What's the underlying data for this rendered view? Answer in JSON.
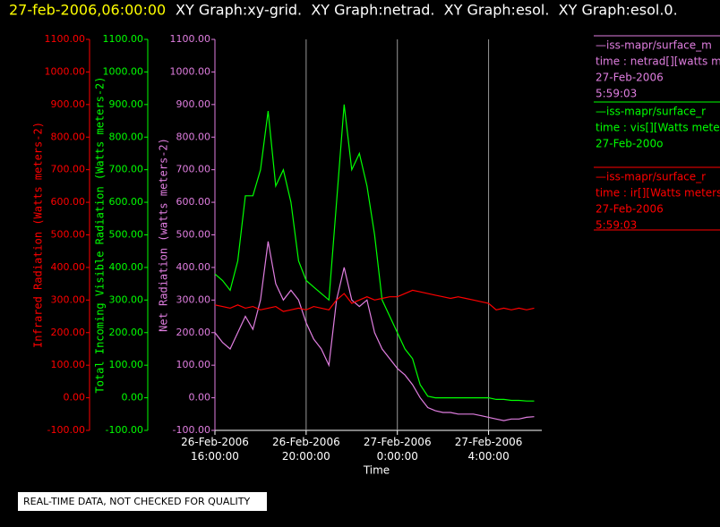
{
  "header": {
    "timestamp": "27-feb-2006,06:00:00",
    "graphs": "XY Graph:xy-grid.  XY Graph:netrad.  XY Graph:esol.  XY Graph:esol.0."
  },
  "footer": "REAL-TIME DATA, NOT CHECKED FOR QUALITY",
  "chart_data": {
    "type": "line",
    "xlabel": "Time",
    "y_axes": [
      {
        "label": "Infrared Radiation (Watts meters-2)",
        "color": "#ff0000"
      },
      {
        "label": "Total Incoming Visible Radiation (Watts meters-2)",
        "color": "#00ff00"
      },
      {
        "label": "Net Radiation (watts meters-2)",
        "color": "#e07ee0"
      }
    ],
    "ylim": [
      -100,
      1100
    ],
    "yticks": [
      {
        "value": -100,
        "label": "-100.00"
      },
      {
        "value": 0,
        "label": "0.00"
      },
      {
        "value": 100,
        "label": "100.00"
      },
      {
        "value": 200,
        "label": "200.00"
      },
      {
        "value": 300,
        "label": "300.00"
      },
      {
        "value": 400,
        "label": "400.00"
      },
      {
        "value": 500,
        "label": "500.00"
      },
      {
        "value": 600,
        "label": "600.00"
      },
      {
        "value": 700,
        "label": "700.00"
      },
      {
        "value": 800,
        "label": "800.00"
      },
      {
        "value": 900,
        "label": "900.00"
      },
      {
        "value": 1000,
        "label": "1000.00"
      },
      {
        "value": 1100,
        "label": "1100.00"
      }
    ],
    "xlim": [
      "2006-02-26T16:00",
      "2006-02-27T06:20"
    ],
    "xticks": [
      {
        "value": "2006-02-26T16:00",
        "label": "26-Feb-2006\n16:00:00"
      },
      {
        "value": "2006-02-26T20:00",
        "label": "26-Feb-2006\n20:00:00"
      },
      {
        "value": "2006-02-27T00:00",
        "label": "27-Feb-2006\n0:00:00"
      },
      {
        "value": "2006-02-27T04:00",
        "label": "27-Feb-2006\n4:00:00"
      }
    ],
    "grid": true,
    "x": [
      "2006-02-26T16:00",
      "2006-02-26T16:20",
      "2006-02-26T16:40",
      "2006-02-26T17:00",
      "2006-02-26T17:20",
      "2006-02-26T17:40",
      "2006-02-26T18:00",
      "2006-02-26T18:20",
      "2006-02-26T18:40",
      "2006-02-26T19:00",
      "2006-02-26T19:20",
      "2006-02-26T19:40",
      "2006-02-26T20:00",
      "2006-02-26T20:20",
      "2006-02-26T20:40",
      "2006-02-26T21:00",
      "2006-02-26T21:20",
      "2006-02-26T21:40",
      "2006-02-26T22:00",
      "2006-02-26T22:20",
      "2006-02-26T22:40",
      "2006-02-26T23:00",
      "2006-02-26T23:20",
      "2006-02-26T23:40",
      "2006-02-27T00:00",
      "2006-02-27T00:20",
      "2006-02-27T00:40",
      "2006-02-27T01:00",
      "2006-02-27T01:20",
      "2006-02-27T01:40",
      "2006-02-27T02:00",
      "2006-02-27T02:20",
      "2006-02-27T02:40",
      "2006-02-27T03:00",
      "2006-02-27T03:20",
      "2006-02-27T03:40",
      "2006-02-27T04:00",
      "2006-02-27T04:20",
      "2006-02-27T04:40",
      "2006-02-27T05:00",
      "2006-02-27T05:20",
      "2006-02-27T05:40",
      "2006-02-27T06:00"
    ],
    "series": [
      {
        "name": "—iss-mapr/surface_m",
        "details": [
          "time : netrad[][watts m",
          "27-Feb-2006",
          "5:59:03"
        ],
        "color": "#e07ee0",
        "values": [
          200,
          170,
          150,
          200,
          250,
          210,
          300,
          480,
          350,
          300,
          330,
          300,
          230,
          180,
          150,
          100,
          300,
          400,
          300,
          280,
          300,
          200,
          150,
          120,
          90,
          70,
          40,
          0,
          -30,
          -40,
          -45,
          -45,
          -50,
          -50,
          -50,
          -55,
          -60,
          -65,
          -70,
          -65,
          -65,
          -60,
          -58
        ]
      },
      {
        "name": "—iss-mapr/surface_r",
        "details": [
          "time : vis[][Watts mete",
          "27-Feb-200o"
        ],
        "color": "#00ff00",
        "values": [
          380,
          360,
          330,
          420,
          620,
          620,
          700,
          880,
          650,
          700,
          600,
          420,
          360,
          340,
          320,
          300,
          600,
          900,
          700,
          750,
          650,
          500,
          300,
          250,
          200,
          150,
          120,
          40,
          5,
          0,
          0,
          0,
          0,
          0,
          0,
          0,
          0,
          -5,
          -5,
          -8,
          -8,
          -10,
          -10
        ]
      },
      {
        "name": "—iss-mapr/surface_r",
        "details": [
          "time : ir[][Watts meters",
          "27-Feb-2006",
          "5:59:03"
        ],
        "color": "#ff0000",
        "values": [
          285,
          280,
          275,
          285,
          275,
          280,
          270,
          275,
          280,
          265,
          270,
          275,
          270,
          280,
          275,
          270,
          300,
          320,
          290,
          300,
          310,
          300,
          305,
          310,
          310,
          320,
          330,
          325,
          320,
          315,
          310,
          305,
          310,
          305,
          300,
          295,
          290,
          270,
          275,
          270,
          275,
          270,
          275
        ]
      }
    ]
  }
}
